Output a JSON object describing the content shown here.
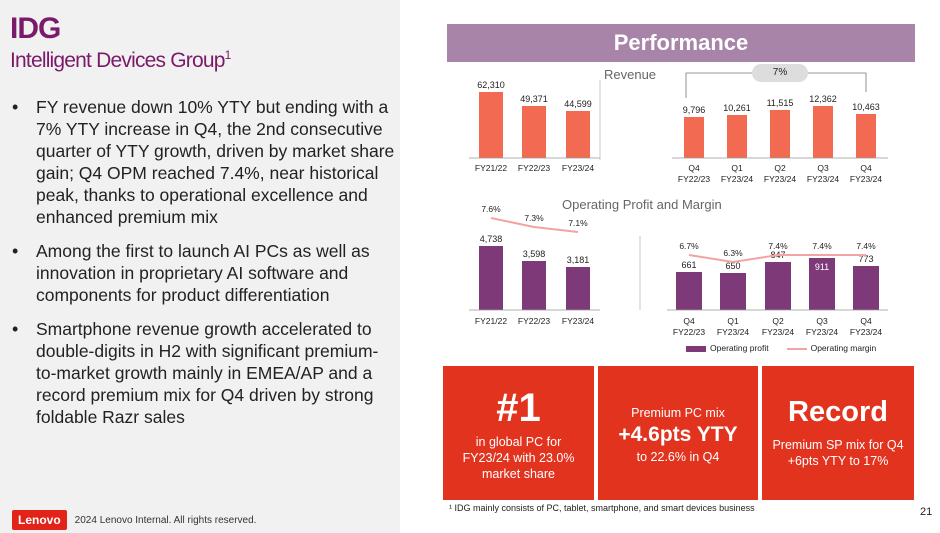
{
  "header": {
    "title": "IDG",
    "subtitle": "Intelligent Devices Group",
    "subtitle_sup": "1"
  },
  "bullets": [
    "FY revenue down 10% YTY but ending with a 7% YTY increase in Q4, the 2nd consecutive quarter of YTY growth, driven by market share gain; Q4 OPM reached 7.4%, near historical peak, thanks to operational excellence and enhanced premium mix",
    "Among the first to launch AI PCs as well as innovation in proprietary AI software and components for product differentiation",
    "Smartphone revenue growth accelerated to double-digits in H2 with significant premium-to-market growth mainly in EMEA/AP and a record premium mix for Q4 driven by strong foldable Razr sales"
  ],
  "footer": {
    "logo": "Lenovo",
    "copyright": "2024 Lenovo Internal. All rights reserved.",
    "footnote": "¹ IDG mainly consists of PC, tablet, smartphone, and smart devices business",
    "page_number": "21"
  },
  "performance": {
    "heading": "Performance",
    "revenue_title": "Revenue",
    "op_title": "Operating Profit and Margin",
    "growth_pill": "7%",
    "legend_profit": "Operating profit",
    "legend_margin": "Operating margin"
  },
  "colors": {
    "brand": "#7b1a6a",
    "revenue_bar": "#f26a52",
    "op_bar": "#7e3a78",
    "margin_line": "#f3a3a3",
    "kpi_bg": "#e2331f",
    "header_band": "#a784a8"
  },
  "chart_data": [
    {
      "type": "bar",
      "title": "Revenue",
      "categories": [
        "FY21/22",
        "FY22/23",
        "FY23/24"
      ],
      "values": [
        62310,
        49371,
        44599
      ],
      "labels": [
        "62,310",
        "49,371",
        "44,599"
      ]
    },
    {
      "type": "bar",
      "title": "Revenue",
      "categories": [
        "Q4 FY22/23",
        "Q1 FY23/24",
        "Q2 FY23/24",
        "Q3 FY23/24",
        "Q4 FY23/24"
      ],
      "values": [
        9796,
        10261,
        11515,
        12362,
        10463
      ],
      "labels": [
        "9,796",
        "10,261",
        "11,515",
        "12,362",
        "10,463"
      ]
    },
    {
      "type": "bar",
      "title": "Operating Profit and Margin",
      "categories": [
        "FY21/22",
        "FY22/23",
        "FY23/24"
      ],
      "values": [
        4738,
        3598,
        3181
      ],
      "labels": [
        "4,738",
        "3,598",
        "3,181"
      ],
      "margin": [
        7.6,
        7.3,
        7.1
      ],
      "margin_labels": [
        "7.6%",
        "7.3%",
        "7.1%"
      ]
    },
    {
      "type": "bar",
      "title": "Operating Profit and Margin",
      "categories": [
        "Q4 FY22/23",
        "Q1 FY23/24",
        "Q2 FY23/24",
        "Q3 FY23/24",
        "Q4 FY23/24"
      ],
      "values": [
        661,
        650,
        847,
        911,
        773
      ],
      "labels": [
        "661",
        "650",
        "847",
        "911",
        "773"
      ],
      "margin": [
        6.7,
        6.3,
        7.4,
        7.4,
        7.4
      ],
      "margin_labels": [
        "6.7%",
        "6.3%",
        "7.4%",
        "7.4%",
        "7.4%"
      ],
      "legend": [
        "Operating profit",
        "Operating margin"
      ]
    }
  ],
  "kpis": [
    {
      "big": "#1",
      "text": "in global PC for FY23/24 with 23.0% market share"
    },
    {
      "pre": "Premium PC mix",
      "big": "+4.6pts YTY",
      "text": "to 22.6% in Q4"
    },
    {
      "big": "Record",
      "text": "Premium SP mix for Q4 +6pts YTY to 17%"
    }
  ]
}
